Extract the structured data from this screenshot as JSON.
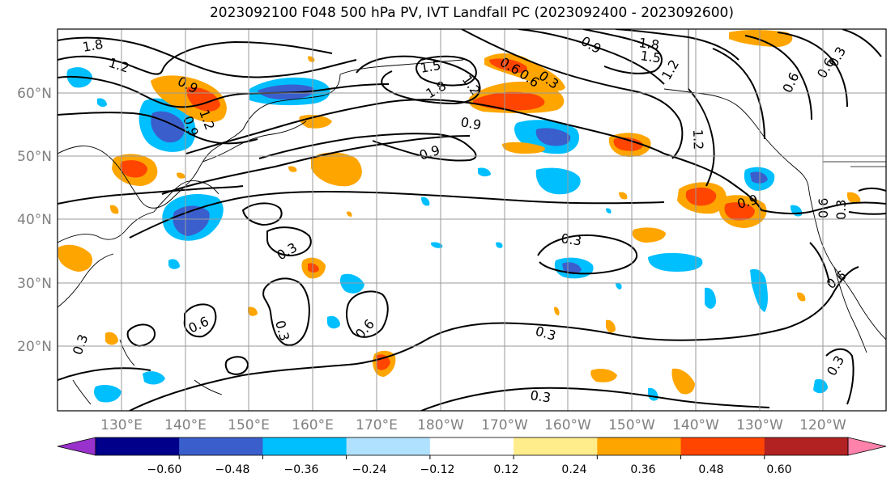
{
  "title": "2023092100 F048 500 hPa PV, IVT Landfall PC (2023092400 - 2023092600)",
  "lat_labels": [
    "60°N",
    "50°N",
    "40°N",
    "30°N",
    "20°N"
  ],
  "lon_labels": [
    "130°E",
    "140°E",
    "150°E",
    "160°E",
    "170°E",
    "180°W",
    "170°W",
    "160°W",
    "150°W",
    "140°W",
    "130°W",
    "120°W"
  ],
  "colorbar": {
    "ticks": [
      "−0.60",
      "−0.48",
      "−0.36",
      "−0.24",
      "−0.12",
      "0.12",
      "0.24",
      "0.36",
      "0.48",
      "0.60"
    ],
    "colors": [
      "#9932cc",
      "#00008b",
      "#3a5fcd",
      "#00bfff",
      "#b0e2ff",
      "#ffffff",
      "#ffec8b",
      "#ffa500",
      "#ff4500",
      "#b22222",
      "#ff82ab"
    ]
  },
  "contour_labels": [
    "1.8",
    "1.2",
    "0.9",
    "1.5",
    "1.8",
    "1.2",
    "0.6",
    "0.9",
    "1.5",
    "1.8",
    "1.2",
    "0.6",
    "0.3",
    "1.2",
    "0.6",
    "0.9",
    "0.9",
    "0.9",
    "1.2",
    "0.9",
    "0.6",
    "0.6",
    "0.3",
    "0.3",
    "0.3",
    "0.6",
    "0.6",
    "0.3",
    "0.3",
    "0.3",
    "0.3",
    "0.3",
    "0.6",
    "0.3"
  ]
}
